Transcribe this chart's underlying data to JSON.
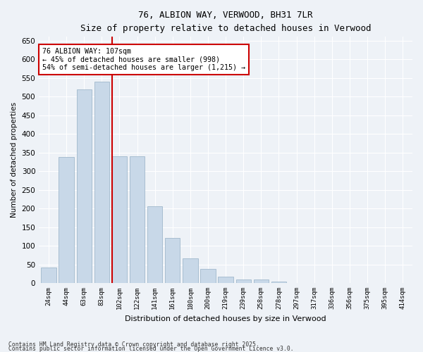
{
  "title": "76, ALBION WAY, VERWOOD, BH31 7LR",
  "subtitle": "Size of property relative to detached houses in Verwood",
  "xlabel": "Distribution of detached houses by size in Verwood",
  "ylabel": "Number of detached properties",
  "bar_color": "#c8d8e8",
  "bar_edge_color": "#a0b8cc",
  "categories": [
    "24sqm",
    "44sqm",
    "63sqm",
    "83sqm",
    "102sqm",
    "122sqm",
    "141sqm",
    "161sqm",
    "180sqm",
    "200sqm",
    "219sqm",
    "239sqm",
    "258sqm",
    "278sqm",
    "297sqm",
    "317sqm",
    "336sqm",
    "356sqm",
    "375sqm",
    "395sqm",
    "414sqm"
  ],
  "values": [
    42,
    338,
    520,
    540,
    340,
    340,
    205,
    120,
    67,
    37,
    17,
    10,
    10,
    3,
    1,
    0,
    0,
    0,
    0,
    0,
    1
  ],
  "red_line_x": 3.57,
  "annotation_text": "76 ALBION WAY: 107sqm\n← 45% of detached houses are smaller (998)\n54% of semi-detached houses are larger (1,215) →",
  "ylim": [
    0,
    660
  ],
  "yticks": [
    0,
    50,
    100,
    150,
    200,
    250,
    300,
    350,
    400,
    450,
    500,
    550,
    600,
    650
  ],
  "footnote1": "Contains HM Land Registry data © Crown copyright and database right 2025.",
  "footnote2": "Contains public sector information licensed under the Open Government Licence v3.0.",
  "bg_color": "#eef2f7",
  "grid_color": "#ffffff",
  "annotation_box_color": "#ffffff",
  "annotation_box_edge": "#cc0000",
  "red_line_color": "#cc0000"
}
